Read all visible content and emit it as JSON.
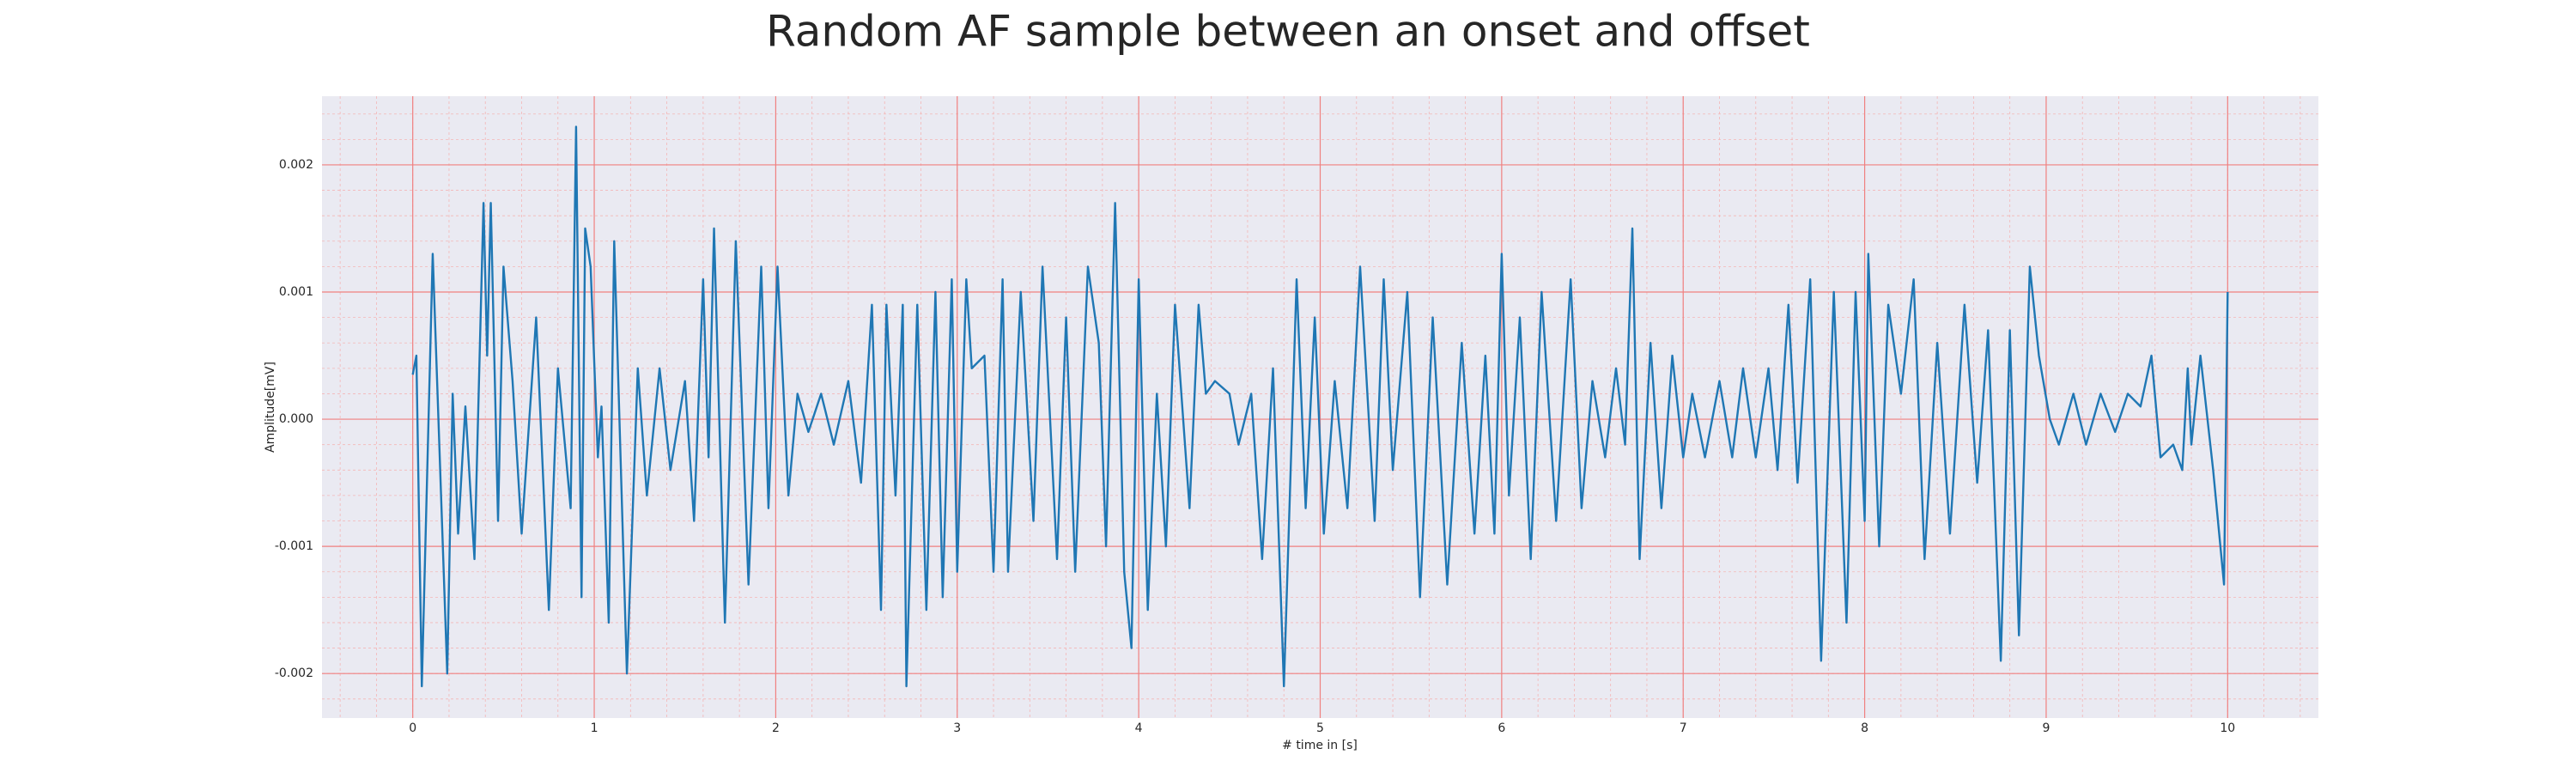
{
  "chart_data": {
    "type": "line",
    "title": "Random AF sample between an onset and offset",
    "x_label": "# time in [s]",
    "y_label": "Amplitude[mV]",
    "color": "#1f77b4",
    "xlim": [
      -0.5,
      10.5
    ],
    "ylim": [
      -0.00235,
      0.00254
    ],
    "xticks": [
      0,
      1,
      2,
      3,
      4,
      5,
      6,
      7,
      8,
      9,
      10
    ],
    "yticks": [
      -0.002,
      -0.001,
      {
        "value": 0,
        "label": "0.000"
      },
      0.001,
      0.002
    ],
    "grid": true,
    "minor_grid": true,
    "x": [
      0,
      0.02,
      0.05,
      0.11,
      0.19,
      0.22,
      0.25,
      0.29,
      0.34,
      0.39,
      0.41,
      0.43,
      0.47,
      0.5,
      0.55,
      0.6,
      0.68,
      0.75,
      0.8,
      0.87,
      0.9,
      0.93,
      0.95,
      0.98,
      1.02,
      1.04,
      1.08,
      1.11,
      1.18,
      1.24,
      1.29,
      1.36,
      1.42,
      1.5,
      1.55,
      1.6,
      1.63,
      1.66,
      1.72,
      1.78,
      1.85,
      1.92,
      1.96,
      2.01,
      2.07,
      2.12,
      2.18,
      2.25,
      2.32,
      2.4,
      2.47,
      2.53,
      2.58,
      2.61,
      2.66,
      2.7,
      2.72,
      2.78,
      2.83,
      2.88,
      2.92,
      2.97,
      3.0,
      3.05,
      3.08,
      3.15,
      3.2,
      3.25,
      3.28,
      3.35,
      3.42,
      3.47,
      3.55,
      3.6,
      3.65,
      3.72,
      3.78,
      3.82,
      3.87,
      3.92,
      3.96,
      4.0,
      4.05,
      4.1,
      4.15,
      4.2,
      4.28,
      4.33,
      4.37,
      4.42,
      4.5,
      4.55,
      4.62,
      4.68,
      4.74,
      4.8,
      4.87,
      4.92,
      4.97,
      5.02,
      5.08,
      5.15,
      5.22,
      5.3,
      5.35,
      5.4,
      5.48,
      5.55,
      5.62,
      5.7,
      5.78,
      5.85,
      5.91,
      5.96,
      6.0,
      6.04,
      6.1,
      6.16,
      6.22,
      6.3,
      6.38,
      6.44,
      6.5,
      6.57,
      6.63,
      6.68,
      6.72,
      6.76,
      6.82,
      6.88,
      6.94,
      7.0,
      7.05,
      7.12,
      7.2,
      7.27,
      7.33,
      7.4,
      7.47,
      7.52,
      7.58,
      7.63,
      7.7,
      7.76,
      7.83,
      7.9,
      7.95,
      8.0,
      8.02,
      8.08,
      8.13,
      8.2,
      8.27,
      8.33,
      8.4,
      8.47,
      8.55,
      8.62,
      8.68,
      8.75,
      8.8,
      8.85,
      8.91,
      8.96,
      9.02,
      9.07,
      9.15,
      9.22,
      9.3,
      9.38,
      9.45,
      9.52,
      9.58,
      9.63,
      9.7,
      9.75,
      9.78,
      9.8,
      9.85,
      9.92,
      9.98,
      10.0
    ],
    "values": [
      0.00035,
      0.0005,
      -0.0021,
      0.0013,
      -0.002,
      0.0002,
      -0.0009,
      0.0001,
      -0.0011,
      0.0017,
      0.0005,
      0.0017,
      -0.0008,
      0.0012,
      0.0003,
      -0.0009,
      0.0008,
      -0.0015,
      0.0004,
      -0.0007,
      0.0023,
      -0.0014,
      0.0015,
      0.0012,
      -0.0003,
      0.0001,
      -0.0016,
      0.0014,
      -0.002,
      0.0004,
      -0.0006,
      0.0004,
      -0.0004,
      0.0003,
      -0.0008,
      0.0011,
      -0.0003,
      0.0015,
      -0.0016,
      0.0014,
      -0.0013,
      0.0012,
      -0.0007,
      0.0012,
      -0.0006,
      0.0002,
      -0.0001,
      0.0002,
      -0.0002,
      0.0003,
      -0.0005,
      0.0009,
      -0.0015,
      0.0009,
      -0.0006,
      0.0009,
      -0.0021,
      0.0009,
      -0.0015,
      0.001,
      -0.0014,
      0.0011,
      -0.0012,
      0.0011,
      0.0004,
      0.0005,
      -0.0012,
      0.0011,
      -0.0012,
      0.001,
      -0.0008,
      0.0012,
      -0.0011,
      0.0008,
      -0.0012,
      0.0012,
      0.0006,
      -0.001,
      0.0017,
      -0.0012,
      -0.0018,
      0.0011,
      -0.0015,
      0.0002,
      -0.001,
      0.0009,
      -0.0007,
      0.0009,
      0.0002,
      0.0003,
      0.0002,
      -0.0002,
      0.0002,
      -0.0011,
      0.0004,
      -0.0021,
      0.0011,
      -0.0007,
      0.0008,
      -0.0009,
      0.0003,
      -0.0007,
      0.0012,
      -0.0008,
      0.0011,
      -0.0004,
      0.001,
      -0.0014,
      0.0008,
      -0.0013,
      0.0006,
      -0.0009,
      0.0005,
      -0.0009,
      0.0013,
      -0.0006,
      0.0008,
      -0.0011,
      0.001,
      -0.0008,
      0.0011,
      -0.0007,
      0.0003,
      -0.0003,
      0.0004,
      -0.0002,
      0.0015,
      -0.0011,
      0.0006,
      -0.0007,
      0.0005,
      -0.0003,
      0.0002,
      -0.0003,
      0.0003,
      -0.0003,
      0.0004,
      -0.0003,
      0.0004,
      -0.0004,
      0.0009,
      -0.0005,
      0.0011,
      -0.0019,
      0.001,
      -0.0016,
      0.001,
      -0.0008,
      0.0013,
      -0.001,
      0.0009,
      0.0002,
      0.0011,
      -0.0011,
      0.0006,
      -0.0009,
      0.0009,
      -0.0005,
      0.0007,
      -0.0019,
      0.0007,
      -0.0017,
      0.0012,
      0.0005,
      0,
      -0.0002,
      0.0002,
      -0.0002,
      0.0002,
      -0.0001,
      0.0002,
      0.0001,
      0.0005,
      -0.0003,
      -0.0002,
      -0.0004,
      0.0004,
      -0.0002,
      0.0005,
      -0.0004,
      -0.0013,
      0.001
    ]
  }
}
